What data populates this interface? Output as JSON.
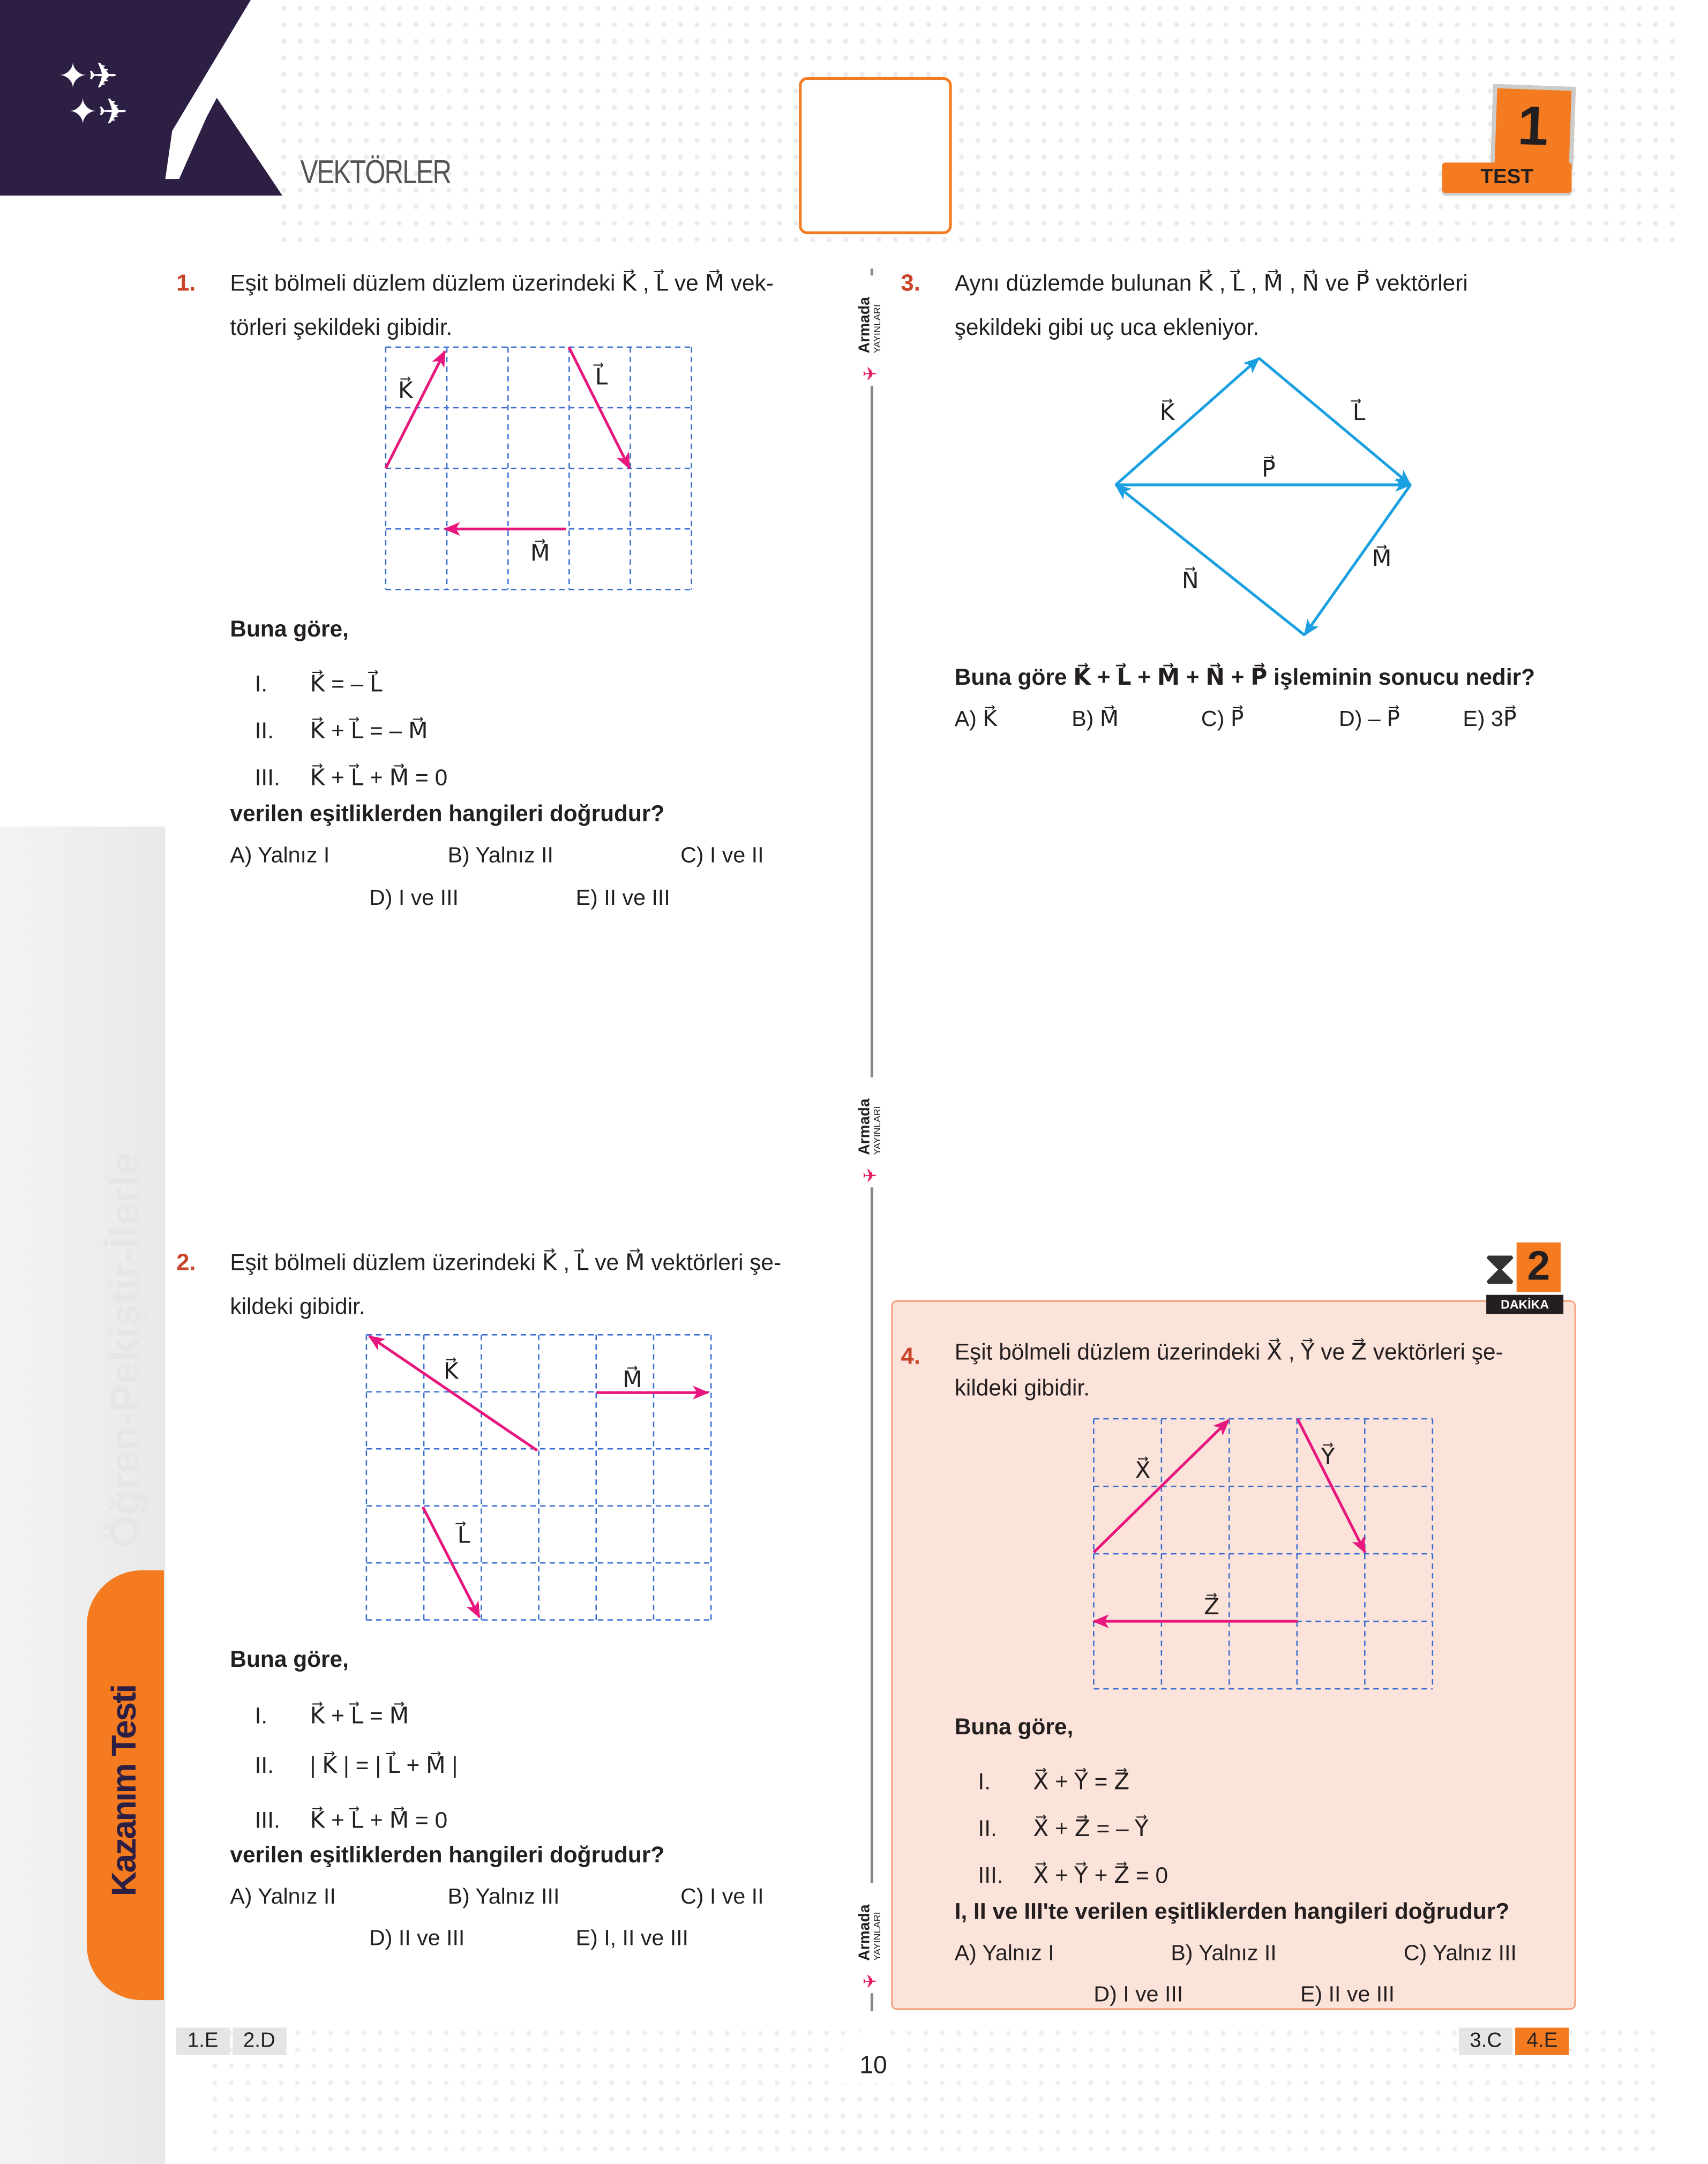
{
  "header": {
    "topic": "VEKTÖRLER",
    "test_label": "TEST",
    "test_number": "1"
  },
  "sidebar": {
    "motto": "Öğren-Pekiştir-İlerle",
    "tab": "Kazanım Testi"
  },
  "publisher": {
    "name": "Armada",
    "sub": "YAYINLARI"
  },
  "colors": {
    "accent": "#f47b20",
    "vector": "#e8177d",
    "vector_q3": "#1aa0e0",
    "grid": "#3c6fd1",
    "brand": "#2d1e44",
    "q4_bg": "#fbe3da"
  },
  "q1": {
    "number": "1.",
    "text": "Eşit bölmeli düzlem düzlem üzerindeki K⃗ , L⃗ ve M⃗ vek-",
    "text2": "törleri şekildeki gibidir.",
    "labels": {
      "k": "K⃗",
      "l": "L⃗",
      "m": "M⃗"
    },
    "lead": "Buna göre,",
    "statements": [
      {
        "n": "I.",
        "eq": "K⃗ = – L⃗"
      },
      {
        "n": "II.",
        "eq": "K⃗ + L⃗ = – M⃗"
      },
      {
        "n": "III.",
        "eq": "K⃗ + L⃗ + M⃗ = 0"
      }
    ],
    "question": "verilen eşitliklerden hangileri doğrudur?",
    "options": [
      "A) Yalnız I",
      "B) Yalnız II",
      "C) I ve II",
      "D) I ve III",
      "E) II ve III"
    ]
  },
  "q2": {
    "number": "2.",
    "text": "Eşit bölmeli düzlem üzerindeki K⃗ , L⃗ ve M⃗ vektörleri şe-",
    "text2": "kildeki gibidir.",
    "labels": {
      "k": "K⃗",
      "l": "L⃗",
      "m": "M⃗"
    },
    "lead": "Buna göre,",
    "statements": [
      {
        "n": "I.",
        "eq": "K⃗ + L⃗ = M⃗"
      },
      {
        "n": "II.",
        "eq": "| K⃗ | = | L⃗ + M⃗ |"
      },
      {
        "n": "III.",
        "eq": "K⃗ + L⃗ + M⃗ = 0"
      }
    ],
    "question": "verilen eşitliklerden hangileri doğrudur?",
    "options": [
      "A) Yalnız II",
      "B) Yalnız III",
      "C) I ve II",
      "D) II ve III",
      "E) I, II ve III"
    ]
  },
  "q3": {
    "number": "3.",
    "text": "Aynı düzlemde bulunan K⃗ , L⃗ , M⃗ , N⃗ ve P⃗ vektörleri",
    "text2": "şekildeki gibi uç uca ekleniyor.",
    "labels": {
      "k": "K⃗",
      "l": "L⃗",
      "m": "M⃗",
      "n": "N⃗",
      "p": "P⃗"
    },
    "question": "Buna göre K⃗ + L⃗ + M⃗ + N⃗ + P⃗ işleminin sonucu nedir?",
    "options": [
      "A) K⃗",
      "B) M⃗",
      "C) P⃗",
      "D) – P⃗",
      "E) 3P⃗"
    ]
  },
  "q4": {
    "number": "4.",
    "timer_minutes": "2",
    "timer_label": "DAKİKA",
    "text": "Eşit bölmeli düzlem üzerindeki X⃗ , Y⃗ ve Z⃗ vektörleri şe-",
    "text2": "kildeki gibidir.",
    "labels": {
      "x": "X⃗",
      "y": "Y⃗",
      "z": "Z⃗"
    },
    "lead": "Buna göre,",
    "statements": [
      {
        "n": "I.",
        "eq": "X⃗ + Y⃗ = Z⃗"
      },
      {
        "n": "II.",
        "eq": "X⃗ + Z⃗ = – Y⃗"
      },
      {
        "n": "III.",
        "eq": "X⃗ + Y⃗ + Z⃗ = 0"
      }
    ],
    "question": "I, II ve III'te verilen eşitliklerden hangileri doğrudur?",
    "options": [
      "A) Yalnız I",
      "B) Yalnız II",
      "C) Yalnız III",
      "D) I ve III",
      "E) II ve III"
    ]
  },
  "footer": {
    "page": "10",
    "keys_left": [
      "1.E",
      "2.D"
    ],
    "keys_right": [
      "3.C",
      "4.E"
    ]
  }
}
